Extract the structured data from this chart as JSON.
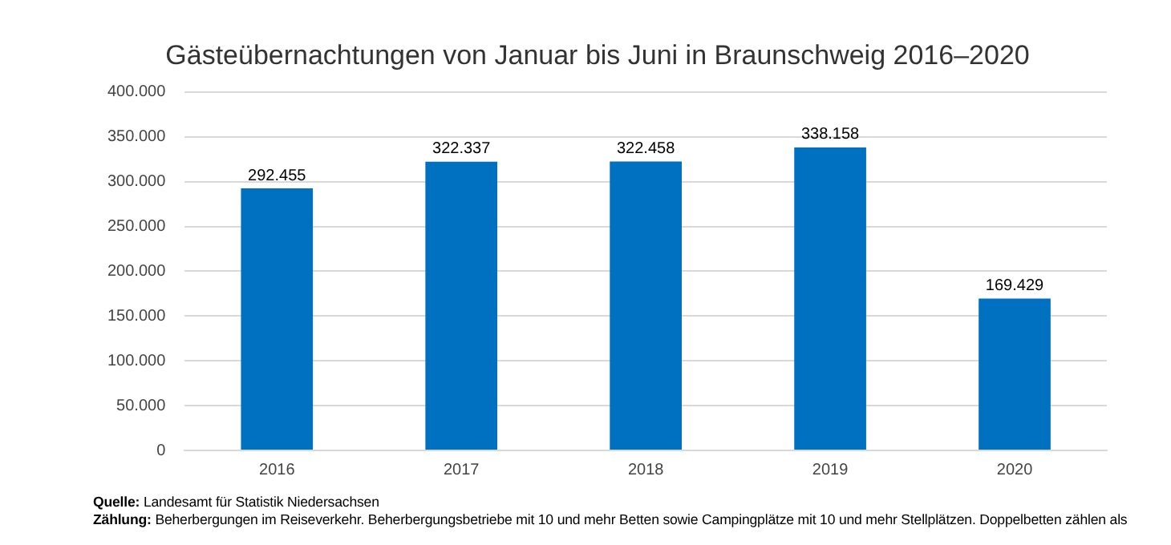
{
  "chart_data": {
    "type": "bar",
    "title": "Gästeübernachtungen von Januar bis Juni in Braunschweig 2016–2020",
    "categories": [
      "2016",
      "2017",
      "2018",
      "2019",
      "2020"
    ],
    "values": [
      292455,
      322337,
      322458,
      338158,
      169429
    ],
    "value_labels": [
      "292.455",
      "322.337",
      "322.458",
      "338.158",
      "169.429"
    ],
    "color": "#0070c0",
    "ylim": [
      0,
      400000
    ],
    "yticks": [
      {
        "value": 0,
        "label": "0"
      },
      {
        "value": 50000,
        "label": "50.000"
      },
      {
        "value": 100000,
        "label": "100.000"
      },
      {
        "value": 150000,
        "label": "150.000"
      },
      {
        "value": 200000,
        "label": "200.000"
      },
      {
        "value": 250000,
        "label": "250.000"
      },
      {
        "value": 300000,
        "label": "300.000"
      },
      {
        "value": 350000,
        "label": "350.000"
      },
      {
        "value": 400000,
        "label": "400.000"
      }
    ],
    "grid": "y",
    "legend": false,
    "annotations": [
      "Quelle: Landesamt für Statistik Niedersachsen",
      "Zählung: Beherbergungen im Reiseverkehr. Beherbergungsbetriebe mit 10 und mehr Betten sowie Campingplätze mit 10 und mehr Stellplätzen. Doppelbetten zählen als"
    ]
  }
}
